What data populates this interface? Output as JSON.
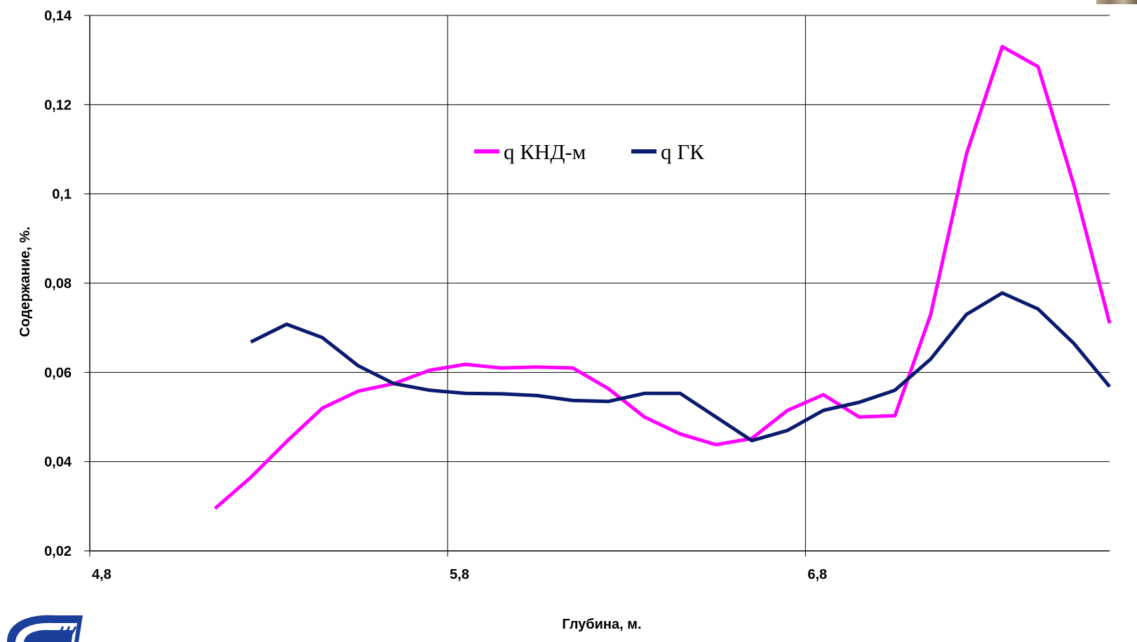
{
  "chart_data": {
    "type": "line",
    "xlabel": "Глубина, м.",
    "ylabel": "Содержание, %.",
    "xlim": [
      4.8,
      7.65
    ],
    "ylim": [
      0.02,
      0.14
    ],
    "x_ticks": [
      4.8,
      5.8,
      6.8
    ],
    "x_tick_labels": [
      "4,8",
      "5,8",
      "6,8"
    ],
    "y_ticks": [
      0.02,
      0.04,
      0.06,
      0.08,
      0.1,
      0.12,
      0.14
    ],
    "y_tick_labels": [
      "0,02",
      "0,04",
      "0,06",
      "0,08",
      "0,1",
      "0,12",
      "0,14"
    ],
    "grid": true,
    "legend_position": "top-center",
    "series": [
      {
        "name": "q КНД-м",
        "color": "#ff00ff",
        "x": [
          5.15,
          5.25,
          5.35,
          5.45,
          5.55,
          5.65,
          5.75,
          5.85,
          5.95,
          6.05,
          6.15,
          6.25,
          6.35,
          6.45,
          6.55,
          6.65,
          6.75,
          6.85,
          6.95,
          7.05,
          7.15,
          7.25,
          7.35,
          7.45,
          7.55,
          7.65
        ],
        "y": [
          0.0295,
          0.0365,
          0.0445,
          0.052,
          0.0558,
          0.0575,
          0.0605,
          0.0618,
          0.061,
          0.0612,
          0.061,
          0.0563,
          0.05,
          0.0462,
          0.0438,
          0.0452,
          0.0515,
          0.055,
          0.05,
          0.0503,
          0.073,
          0.109,
          0.133,
          0.1285,
          0.102,
          0.071
        ]
      },
      {
        "name": "q ГК",
        "color": "#0a1a6e",
        "x": [
          5.25,
          5.35,
          5.45,
          5.55,
          5.65,
          5.75,
          5.85,
          5.95,
          6.05,
          6.15,
          6.25,
          6.35,
          6.45,
          6.55,
          6.65,
          6.75,
          6.85,
          6.95,
          7.05,
          7.15,
          7.25,
          7.35,
          7.45,
          7.55,
          7.65
        ],
        "y": [
          0.0668,
          0.0708,
          0.0678,
          0.0615,
          0.0575,
          0.056,
          0.0553,
          0.0552,
          0.0548,
          0.0537,
          0.0535,
          0.0553,
          0.0553,
          0.05,
          0.0447,
          0.047,
          0.0515,
          0.0533,
          0.056,
          0.063,
          0.073,
          0.0778,
          0.0742,
          0.0665,
          0.0568
        ]
      }
    ]
  }
}
